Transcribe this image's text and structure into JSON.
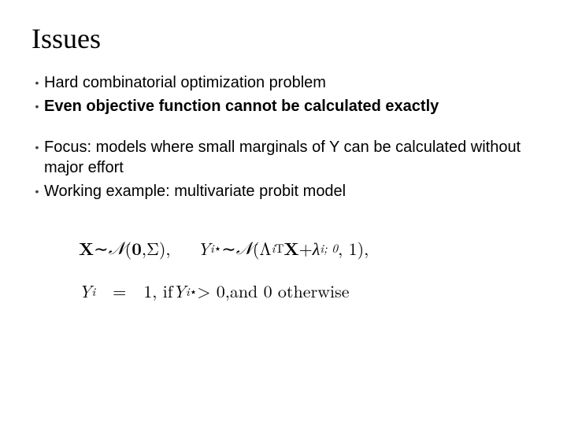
{
  "slide": {
    "title": "Issues",
    "title_color": "#000000",
    "title_font": "Georgia serif",
    "title_fontsize_pt": 27,
    "background_color": "#ffffff",
    "body_font": "Arial sans-serif",
    "body_fontsize_pt": 15,
    "bullet_color": "#404040",
    "group1": {
      "b1": {
        "text": "Hard combinatorial optimization problem",
        "bold": false
      },
      "b2": {
        "text": "Even objective function cannot be calculated exactly",
        "bold": true
      }
    },
    "group2": {
      "b1": {
        "text": "Focus: models where small marginals of Y can be calculated without major effort",
        "bold": false
      },
      "b2": {
        "text": "Working example: multivariate probit model",
        "bold": false
      }
    },
    "math": {
      "font": "Latin Modern / CMU Serif",
      "fontsize_pt": 17,
      "color": "#000000",
      "line1_tex": "\\mathbf{X} \\sim \\mathcal{N}(\\mathbf{0}, \\Sigma), \\qquad Y_i^{\\star} \\sim \\mathcal{N}(\\Lambda_i^{\\mathsf{T}} \\mathbf{X} + \\lambda_{i;0}, 1),",
      "line2_tex": "Y_i \\;=\\; 1, \\text{if } Y_i^{\\star} > 0, \\text{ and } 0 \\text{ otherwise}",
      "line1_parts": {
        "X": "X",
        "sim1": " ∼ ",
        "N1": "𝒩",
        "lp1": "(",
        "zero": "0",
        "c1": ", ",
        "Sigma": "Σ",
        "rp1": "),",
        "Y": "Y",
        "i1": "i",
        "star1": "⋆",
        "sim2": " ∼ ",
        "N2": "𝒩",
        "lp2": "(",
        "Lambda": "Λ",
        "i2": "i",
        "T": "T",
        "Xb": "X",
        "plus": " + ",
        "lambda": "λ",
        "i3": "i; 0",
        "c2": ", 1),"
      },
      "line2_parts": {
        "Y": "Y",
        "i": "i",
        "eq": "=",
        "one": "1, if ",
        "Y2": "Y",
        "i2": "i",
        "star": "⋆",
        "gt": " > 0,",
        "tail": " and 0 otherwise"
      }
    }
  }
}
